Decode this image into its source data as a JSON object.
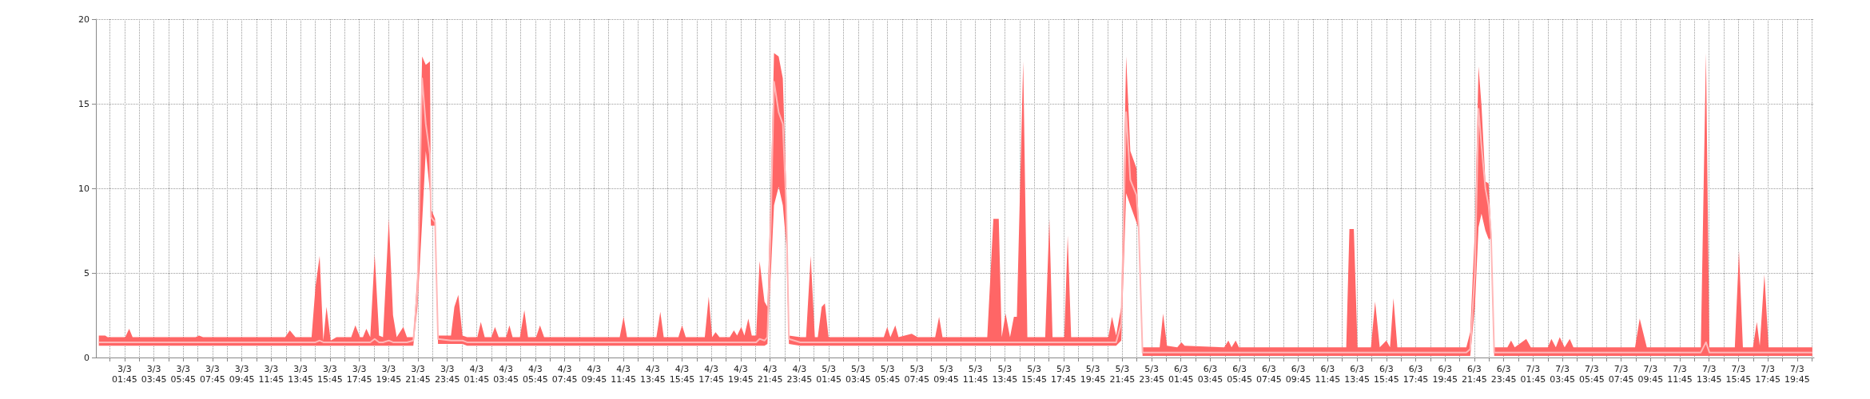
{
  "chart_data": {
    "type": "line",
    "xlim": [
      "--03-02T23:48",
      "--03-07T20:54"
    ],
    "ylim": [
      0,
      20
    ],
    "yticks": [
      0,
      5,
      10,
      15,
      20
    ],
    "grid": true,
    "xticks": [
      {
        "value": "--03-03T00:45",
        "label": null
      },
      {
        "value": "--03-03T01:45",
        "label": "3/3 01:45"
      },
      {
        "value": "--03-03T02:45",
        "label": null
      },
      {
        "value": "--03-03T03:45",
        "label": "3/3 03:45"
      },
      {
        "value": "--03-03T04:45",
        "label": null
      },
      {
        "value": "--03-03T05:45",
        "label": "3/3 05:45"
      },
      {
        "value": "--03-03T06:45",
        "label": null
      },
      {
        "value": "--03-03T07:45",
        "label": "3/3 07:45"
      },
      {
        "value": "--03-03T08:45",
        "label": null
      },
      {
        "value": "--03-03T09:45",
        "label": "3/3 09:45"
      },
      {
        "value": "--03-03T10:45",
        "label": null
      },
      {
        "value": "--03-03T11:45",
        "label": "3/3 11:45"
      },
      {
        "value": "--03-03T12:45",
        "label": null
      },
      {
        "value": "--03-03T13:45",
        "label": "3/3 13:45"
      },
      {
        "value": "--03-03T14:45",
        "label": null
      },
      {
        "value": "--03-03T15:45",
        "label": "3/3 15:45"
      },
      {
        "value": "--03-03T16:45",
        "label": null
      },
      {
        "value": "--03-03T17:45",
        "label": "3/3 17:45"
      },
      {
        "value": "--03-03T18:45",
        "label": null
      },
      {
        "value": "--03-03T19:45",
        "label": "3/3 19:45"
      },
      {
        "value": "--03-03T20:45",
        "label": null
      },
      {
        "value": "--03-03T21:45",
        "label": "3/3 21:45"
      },
      {
        "value": "--03-03T22:45",
        "label": null
      },
      {
        "value": "--03-03T23:45",
        "label": "3/3 23:45"
      },
      {
        "value": "--03-04T00:45",
        "label": null
      },
      {
        "value": "--03-04T01:45",
        "label": "4/3 01:45"
      },
      {
        "value": "--03-04T02:45",
        "label": null
      },
      {
        "value": "--03-04T03:45",
        "label": "4/3 03:45"
      },
      {
        "value": "--03-04T04:45",
        "label": null
      },
      {
        "value": "--03-04T05:45",
        "label": "4/3 05:45"
      },
      {
        "value": "--03-04T06:45",
        "label": null
      },
      {
        "value": "--03-04T07:45",
        "label": "4/3 07:45"
      },
      {
        "value": "--03-04T08:45",
        "label": null
      },
      {
        "value": "--03-04T09:45",
        "label": "4/3 09:45"
      },
      {
        "value": "--03-04T10:45",
        "label": null
      },
      {
        "value": "--03-04T11:45",
        "label": "4/3 11:45"
      },
      {
        "value": "--03-04T12:45",
        "label": null
      },
      {
        "value": "--03-04T13:45",
        "label": "4/3 13:45"
      },
      {
        "value": "--03-04T14:45",
        "label": null
      },
      {
        "value": "--03-04T15:45",
        "label": "4/3 15:45"
      },
      {
        "value": "--03-04T16:45",
        "label": null
      },
      {
        "value": "--03-04T17:45",
        "label": "4/3 17:45"
      },
      {
        "value": "--03-04T18:45",
        "label": null
      },
      {
        "value": "--03-04T19:45",
        "label": "4/3 19:45"
      },
      {
        "value": "--03-04T20:45",
        "label": null
      },
      {
        "value": "--03-04T21:45",
        "label": "4/3 21:45"
      },
      {
        "value": "--03-04T22:45",
        "label": null
      },
      {
        "value": "--03-04T23:45",
        "label": "4/3 23:45"
      },
      {
        "value": "--03-05T00:45",
        "label": null
      },
      {
        "value": "--03-05T01:45",
        "label": "5/3 01:45"
      },
      {
        "value": "--03-05T02:45",
        "label": null
      },
      {
        "value": "--03-05T03:45",
        "label": "5/3 03:45"
      },
      {
        "value": "--03-05T04:45",
        "label": null
      },
      {
        "value": "--03-05T05:45",
        "label": "5/3 05:45"
      },
      {
        "value": "--03-05T06:45",
        "label": null
      },
      {
        "value": "--03-05T07:45",
        "label": "5/3 07:45"
      },
      {
        "value": "--03-05T08:45",
        "label": null
      },
      {
        "value": "--03-05T09:45",
        "label": "5/3 09:45"
      },
      {
        "value": "--03-05T10:45",
        "label": null
      },
      {
        "value": "--03-05T11:45",
        "label": "5/3 11:45"
      },
      {
        "value": "--03-05T12:45",
        "label": null
      },
      {
        "value": "--03-05T13:45",
        "label": "5/3 13:45"
      },
      {
        "value": "--03-05T14:45",
        "label": null
      },
      {
        "value": "--03-05T15:45",
        "label": "5/3 15:45"
      },
      {
        "value": "--03-05T16:45",
        "label": null
      },
      {
        "value": "--03-05T17:45",
        "label": "5/3 17:45"
      },
      {
        "value": "--03-05T18:45",
        "label": null
      },
      {
        "value": "--03-05T19:45",
        "label": "5/3 19:45"
      },
      {
        "value": "--03-05T20:45",
        "label": null
      },
      {
        "value": "--03-05T21:45",
        "label": "5/3 21:45"
      },
      {
        "value": "--03-05T22:45",
        "label": null
      },
      {
        "value": "--03-05T23:45",
        "label": "5/3 23:45"
      },
      {
        "value": "--03-06T00:45",
        "label": null
      },
      {
        "value": "--03-06T01:45",
        "label": "6/3 01:45"
      },
      {
        "value": "--03-06T02:45",
        "label": null
      },
      {
        "value": "--03-06T03:45",
        "label": "6/3 03:45"
      },
      {
        "value": "--03-06T04:45",
        "label": null
      },
      {
        "value": "--03-06T05:45",
        "label": "6/3 05:45"
      },
      {
        "value": "--03-06T06:45",
        "label": null
      },
      {
        "value": "--03-06T07:45",
        "label": "6/3 07:45"
      },
      {
        "value": "--03-06T08:45",
        "label": null
      },
      {
        "value": "--03-06T09:45",
        "label": "6/3 09:45"
      },
      {
        "value": "--03-06T10:45",
        "label": null
      },
      {
        "value": "--03-06T11:45",
        "label": "6/3 11:45"
      },
      {
        "value": "--03-06T12:45",
        "label": null
      },
      {
        "value": "--03-06T13:45",
        "label": "6/3 13:45"
      },
      {
        "value": "--03-06T14:45",
        "label": null
      },
      {
        "value": "--03-06T15:45",
        "label": "6/3 15:45"
      },
      {
        "value": "--03-06T16:45",
        "label": null
      },
      {
        "value": "--03-06T17:45",
        "label": "6/3 17:45"
      },
      {
        "value": "--03-06T18:45",
        "label": null
      },
      {
        "value": "--03-06T19:45",
        "label": "6/3 19:45"
      },
      {
        "value": "--03-06T20:45",
        "label": null
      },
      {
        "value": "--03-06T21:45",
        "label": "6/3 21:45"
      },
      {
        "value": "--03-06T22:45",
        "label": null
      },
      {
        "value": "--03-06T23:45",
        "label": "6/3 23:45"
      },
      {
        "value": "--03-07T00:45",
        "label": null
      },
      {
        "value": "--03-07T01:45",
        "label": "7/3 01:45"
      },
      {
        "value": "--03-07T02:45",
        "label": null
      },
      {
        "value": "--03-07T03:45",
        "label": "7/3 03:45"
      },
      {
        "value": "--03-07T04:45",
        "label": null
      },
      {
        "value": "--03-07T05:45",
        "label": "7/3 05:45"
      },
      {
        "value": "--03-07T06:45",
        "label": null
      },
      {
        "value": "--03-07T07:45",
        "label": "7/3 07:45"
      },
      {
        "value": "--03-07T08:45",
        "label": null
      },
      {
        "value": "--03-07T09:45",
        "label": "7/3 09:45"
      },
      {
        "value": "--03-07T10:45",
        "label": null
      },
      {
        "value": "--03-07T11:45",
        "label": "7/3 11:45"
      },
      {
        "value": "--03-07T12:45",
        "label": null
      },
      {
        "value": "--03-07T13:45",
        "label": "7/3 13:45"
      },
      {
        "value": "--03-07T14:45",
        "label": null
      },
      {
        "value": "--03-07T15:45",
        "label": "7/3 15:45"
      },
      {
        "value": "--03-07T16:45",
        "label": null
      },
      {
        "value": "--03-07T17:45",
        "label": "7/3 17:45"
      },
      {
        "value": "--03-07T18:45",
        "label": null
      },
      {
        "value": "--03-07T19:45",
        "label": "7/3 19:45"
      },
      {
        "value": "--03-07T20:45",
        "label": null
      }
    ],
    "series": [
      {
        "color": "#ffb8b8",
        "x": [
          "--03-03T00:00",
          "--03-03T00:26",
          "--03-03T00:36",
          "--03-03T01:48",
          "--03-03T02:04",
          "--03-03T02:18",
          "--03-03T06:36",
          "--03-03T06:50",
          "--03-03T07:06",
          "--03-03T12:42",
          "--03-03T13:01",
          "--03-03T13:24",
          "--03-03T14:30",
          "--03-03T14:46",
          "--03-03T15:03",
          "--03-03T15:18",
          "--03-03T15:31",
          "--03-03T15:48",
          "--03-03T16:12",
          "--03-03T17:12",
          "--03-03T17:29",
          "--03-03T17:48",
          "--03-03T18:00",
          "--03-03T18:14",
          "--03-03T18:30",
          "--03-03T18:48",
          "--03-03T19:06",
          "--03-03T19:22",
          "--03-03T19:46",
          "--03-03T20:03",
          "--03-03T20:18",
          "--03-03T20:45",
          "--03-03T21:00",
          "--03-03T21:26",
          "--03-03T21:43",
          "--03-03T22:02",
          "--03-03T22:17",
          "--03-03T22:34",
          "--03-03T22:38",
          "--03-03T22:55",
          "--03-03T23:07",
          "--03-04T00:00",
          "--03-04T00:14",
          "--03-04T00:30",
          "--03-04T00:47",
          "--03-04T01:06",
          "--03-04T01:48",
          "--03-04T02:02",
          "--03-04T02:18",
          "--03-04T02:45",
          "--03-04T03:00",
          "--03-04T03:15",
          "--03-04T03:45",
          "--03-04T03:59",
          "--03-04T04:12",
          "--03-04T04:42",
          "--03-04T05:00",
          "--03-04T05:15",
          "--03-04T05:48",
          "--03-04T06:04",
          "--03-04T06:21",
          "--03-04T11:30",
          "--03-04T11:46",
          "--03-04T12:00",
          "--03-04T14:00",
          "--03-04T14:16",
          "--03-04T14:30",
          "--03-04T15:30",
          "--03-04T15:45",
          "--03-04T16:00",
          "--03-04T17:18",
          "--03-04T17:34",
          "--03-04T17:48",
          "--03-04T18:02",
          "--03-04T18:18",
          "--03-04T19:00",
          "--03-04T19:17",
          "--03-04T19:30",
          "--03-04T19:47",
          "--03-04T20:00",
          "--03-04T20:16",
          "--03-04T20:30",
          "--03-04T20:48",
          "--03-04T21:02",
          "--03-04T21:22",
          "--03-04T21:34",
          "--03-04T21:48",
          "--03-04T22:01",
          "--03-04T22:20",
          "--03-04T22:37",
          "--03-04T22:51",
          "--03-04T23:02",
          "--03-04T23:48",
          "--03-05T00:12",
          "--03-05T00:31",
          "--03-05T00:48",
          "--03-05T01:00",
          "--03-05T01:16",
          "--03-05T01:29",
          "--03-05T01:44",
          "--03-05T05:30",
          "--03-05T05:44",
          "--03-05T05:57",
          "--03-05T06:17",
          "--03-05T06:30",
          "--03-05T07:24",
          "--03-05T07:48",
          "--03-05T09:00",
          "--03-05T09:16",
          "--03-05T09:30",
          "--03-05T12:33",
          "--03-05T12:58",
          "--03-05T13:20",
          "--03-05T13:32",
          "--03-05T13:48",
          "--03-05T14:06",
          "--03-05T14:22",
          "--03-05T14:34",
          "--03-05T15:00",
          "--03-05T15:17",
          "--03-05T16:30",
          "--03-05T16:47",
          "--03-05T17:00",
          "--03-05T17:48",
          "--03-05T18:02",
          "--03-05T18:16",
          "--03-05T20:48",
          "--03-05T21:03",
          "--03-05T21:20",
          "--03-05T21:41",
          "--03-05T22:01",
          "--03-05T22:18",
          "--03-05T22:43",
          "--03-05T22:52",
          "--03-05T23:08",
          "--03-06T00:18",
          "--03-06T00:32",
          "--03-06T00:48",
          "--03-06T01:30",
          "--03-06T01:47",
          "--03-06T02:00",
          "--03-06T04:42",
          "--03-06T04:59",
          "--03-06T05:12",
          "--03-06T05:29",
          "--03-06T05:42",
          "--03-06T13:01",
          "--03-06T13:14",
          "--03-06T13:32",
          "--03-06T13:47",
          "--03-06T14:42",
          "--03-06T14:59",
          "--03-06T15:18",
          "--03-06T15:45",
          "--03-06T16:00",
          "--03-06T16:14",
          "--03-06T16:30",
          "--03-06T21:12",
          "--03-06T21:28",
          "--03-06T21:47",
          "--03-06T22:02",
          "--03-06T22:14",
          "--03-06T22:30",
          "--03-06T22:43",
          "--03-06T22:53",
          "--03-06T23:06",
          "--03-07T00:00",
          "--03-07T00:15",
          "--03-07T00:30",
          "--03-07T01:17",
          "--03-07T01:36",
          "--03-07T02:45",
          "--03-07T03:00",
          "--03-07T03:18",
          "--03-07T03:34",
          "--03-07T03:54",
          "--03-07T04:15",
          "--03-07T04:30",
          "--03-07T08:42",
          "--03-07T09:01",
          "--03-07T09:30",
          "--03-07T13:11",
          "--03-07T13:32",
          "--03-07T13:46",
          "--03-07T15:30",
          "--03-07T15:47",
          "--03-07T16:03",
          "--03-07T16:44",
          "--03-07T17:00",
          "--03-07T17:12",
          "--03-07T17:31",
          "--03-07T17:48",
          "--03-07T20:47"
        ],
        "values": [
          0.9,
          0.9,
          0.9,
          0.9,
          0.9,
          0.9,
          0.9,
          0.9,
          0.9,
          0.9,
          0.9,
          0.9,
          0.9,
          0.9,
          1.0,
          0.9,
          0.9,
          0.9,
          0.9,
          0.9,
          0.9,
          0.9,
          0.9,
          0.9,
          0.9,
          1.1,
          0.9,
          0.9,
          1.0,
          0.9,
          0.9,
          0.9,
          0.9,
          1.0,
          4,
          16.5,
          13.8,
          12,
          8.3,
          8.0,
          1.1,
          1.0,
          1.0,
          1.0,
          1.0,
          0.9,
          0.9,
          0.9,
          0.9,
          0.9,
          0.9,
          0.9,
          0.9,
          0.9,
          0.9,
          0.9,
          0.9,
          0.9,
          0.9,
          0.9,
          0.9,
          0.9,
          0.9,
          0.9,
          0.9,
          0.9,
          0.9,
          0.9,
          0.9,
          0.9,
          0.9,
          0.9,
          0.9,
          0.9,
          0.9,
          0.9,
          0.9,
          0.9,
          0.9,
          0.9,
          0.9,
          0.9,
          0.9,
          1.1,
          1.0,
          1.2,
          8,
          16.3,
          14.5,
          13.8,
          9,
          1.1,
          0.9,
          0.9,
          0.9,
          0.9,
          0.9,
          0.9,
          0.9,
          0.9,
          0.9,
          0.9,
          0.9,
          0.9,
          0.9,
          0.9,
          0.9,
          0.9,
          0.9,
          0.9,
          0.9,
          0.9,
          0.9,
          0.9,
          0.9,
          0.9,
          0.9,
          0.9,
          0.9,
          0.9,
          0.9,
          0.9,
          0.9,
          0.9,
          0.9,
          0.9,
          0.9,
          0.9,
          0.9,
          2,
          14.5,
          10.5,
          9.6,
          7.8,
          0.3,
          0.3,
          0.3,
          0.3,
          0.3,
          0.3,
          0.3,
          0.3,
          0.3,
          0.3,
          0.3,
          0.3,
          0.3,
          0.3,
          0.3,
          0.3,
          0.3,
          0.3,
          0.3,
          0.3,
          0.3,
          0.3,
          0.3,
          0.3,
          0.5,
          5,
          14.7,
          12.5,
          10,
          9,
          7.3,
          0.3,
          0.3,
          0.3,
          0.3,
          0.3,
          0.3,
          0.3,
          0.3,
          0.3,
          0.3,
          0.3,
          0.3,
          0.3,
          0.3,
          0.3,
          0.3,
          0.3,
          0.9,
          0.3,
          0.3,
          0.3,
          0.3,
          0.3,
          0.3,
          0.3,
          0.3,
          0.3,
          0.3
        ],
        "lower": [
          0.7,
          0.7,
          0.7,
          0.7,
          0.7,
          0.7,
          0.7,
          0.7,
          0.7,
          0.7,
          0.7,
          0.7,
          0.7,
          0.7,
          0.7,
          0.7,
          0.7,
          0.7,
          0.7,
          0.7,
          0.7,
          0.7,
          0.7,
          0.7,
          0.7,
          0.7,
          0.7,
          0.7,
          0.7,
          0.7,
          0.7,
          0.7,
          0.7,
          0.7,
          3,
          8,
          12.2,
          9.8,
          7.8,
          7.8,
          0.8,
          0.8,
          0.8,
          0.8,
          0.8,
          0.7,
          0.7,
          0.7,
          0.7,
          0.7,
          0.7,
          0.7,
          0.7,
          0.7,
          0.7,
          0.7,
          0.7,
          0.7,
          0.7,
          0.7,
          0.7,
          0.7,
          0.7,
          0.7,
          0.7,
          0.7,
          0.7,
          0.7,
          0.7,
          0.7,
          0.7,
          0.7,
          0.7,
          0.7,
          0.7,
          0.7,
          0.7,
          0.7,
          0.7,
          0.7,
          0.7,
          0.7,
          0.7,
          0.7,
          0.7,
          0.8,
          5,
          9,
          10.1,
          9,
          6.7,
          0.8,
          0.7,
          0.7,
          0.7,
          0.7,
          0.7,
          0.7,
          0.7,
          0.7,
          0.7,
          0.7,
          0.7,
          0.7,
          0.7,
          0.7,
          0.7,
          0.7,
          0.7,
          0.7,
          0.7,
          0.7,
          0.7,
          0.7,
          0.7,
          0.7,
          0.7,
          0.7,
          0.7,
          0.7,
          0.7,
          0.7,
          0.7,
          0.7,
          0.7,
          0.7,
          0.7,
          0.7,
          0.7,
          1,
          9.7,
          9,
          8,
          7.6,
          0.1,
          0.1,
          0.1,
          0.1,
          0.1,
          0.1,
          0.1,
          0.1,
          0.1,
          0.1,
          0.1,
          0.1,
          0.1,
          0.1,
          0.1,
          0.1,
          0.1,
          0.1,
          0.1,
          0.1,
          0.1,
          0.1,
          0.1,
          0.1,
          0.1,
          3,
          7.7,
          8.5,
          7.5,
          7,
          7,
          0.1,
          0.1,
          0.1,
          0.1,
          0.1,
          0.1,
          0.1,
          0.1,
          0.1,
          0.1,
          0.1,
          0.1,
          0.1,
          0.1,
          0.1,
          0.1,
          0.1,
          0.1,
          0.1,
          0.1,
          0.1,
          0.1,
          0.1,
          0.1,
          0.1,
          0.1,
          0.1,
          0.1
        ],
        "upper": [
          1.3,
          1.3,
          1.2,
          1.2,
          1.7,
          1.2,
          1.2,
          1.3,
          1.2,
          1.2,
          1.6,
          1.2,
          1.2,
          4.2,
          6.0,
          1.0,
          3.0,
          1.0,
          1.2,
          1.2,
          1.9,
          1.2,
          1.2,
          1.7,
          1.2,
          6.1,
          1.3,
          1.2,
          8.2,
          2.5,
          1.2,
          1.8,
          1.2,
          1.2,
          5,
          17.8,
          17.3,
          17.5,
          8.8,
          8.2,
          1.3,
          1.3,
          3.0,
          3.7,
          1.3,
          1.2,
          1.2,
          2.1,
          1.2,
          1.2,
          1.8,
          1.2,
          1.2,
          1.9,
          1.2,
          1.2,
          2.8,
          1.2,
          1.2,
          1.9,
          1.2,
          1.2,
          2.4,
          1.2,
          1.2,
          2.7,
          1.2,
          1.2,
          1.9,
          1.2,
          1.2,
          3.6,
          1.2,
          1.5,
          1.2,
          1.2,
          1.6,
          1.3,
          1.8,
          1.3,
          2.3,
          1.3,
          1.3,
          5.7,
          3.3,
          3.0,
          10,
          18,
          17.8,
          16.5,
          10,
          1.3,
          1.2,
          1.2,
          6.0,
          1.2,
          1.2,
          3.0,
          3.2,
          1.2,
          1.2,
          1.8,
          1.2,
          1.9,
          1.2,
          1.4,
          1.2,
          1.2,
          2.4,
          1.2,
          1.2,
          8.2,
          8.2,
          1.2,
          2.6,
          1.2,
          2.4,
          2.4,
          17.5,
          1.2,
          1.2,
          8.2,
          1.2,
          1.2,
          7.2,
          1.2,
          1.2,
          2.4,
          1.3,
          3,
          17.8,
          12.2,
          11.2,
          8,
          0.6,
          0.6,
          2.6,
          0.7,
          0.6,
          0.9,
          0.7,
          0.6,
          1.0,
          0.6,
          1.0,
          0.6,
          0.6,
          7.6,
          7.6,
          0.6,
          0.6,
          3.3,
          0.6,
          1.0,
          0.6,
          3.5,
          0.6,
          0.6,
          1.5,
          7.5,
          17.2,
          14.9,
          10.4,
          10.3,
          7.6,
          0.6,
          0.6,
          1.0,
          0.6,
          1.1,
          0.6,
          0.6,
          1.1,
          0.6,
          1.2,
          0.6,
          1.1,
          0.6,
          0.6,
          2.3,
          0.6,
          0.6,
          18.0,
          0.6,
          0.6,
          6.3,
          0.6,
          0.6,
          2.1,
          0.7,
          4.9,
          0.6,
          0.6
        ]
      }
    ]
  }
}
